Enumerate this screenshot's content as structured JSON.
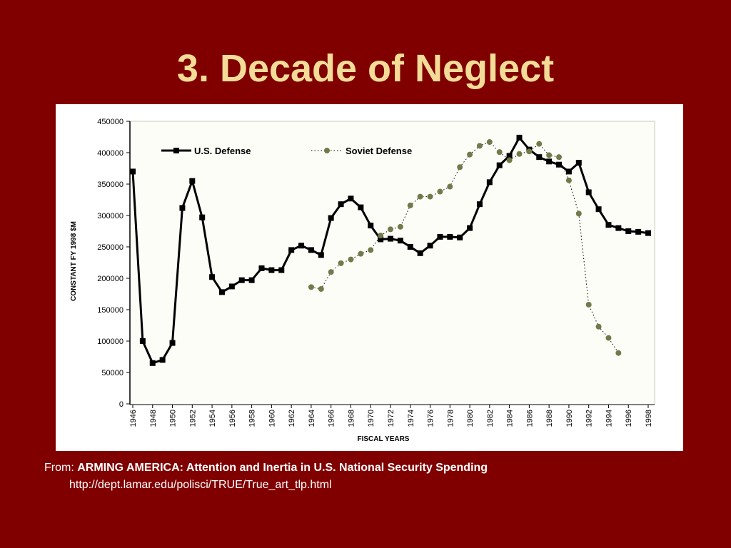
{
  "slide": {
    "title": "3. Decade of Neglect",
    "source_prefix": "From:",
    "source_title": "ARMING AMERICA: Attention and Inertia in U.S. National Security Spending",
    "source_url": "http://dept.lamar.edu/polisci/TRUE/True_art_tlp.html"
  },
  "chart_data": {
    "type": "line",
    "title": "",
    "xlabel": "FISCAL YEARS",
    "ylabel": "CONSTANT FY 1998 $M",
    "ylim": [
      0,
      450000
    ],
    "xlim": [
      1946,
      1998
    ],
    "y_ticks": [
      0,
      50000,
      100000,
      150000,
      200000,
      250000,
      300000,
      350000,
      400000,
      450000
    ],
    "y_tick_labels": [
      "0",
      "50000",
      "100000",
      "150000",
      "200000",
      "250000",
      "300000",
      "350000",
      "400000",
      "450000"
    ],
    "x_tick_labels": [
      "1946",
      "1948",
      "1950",
      "1952",
      "1954",
      "1956",
      "1958",
      "1960",
      "1962",
      "1964",
      "1966",
      "1968",
      "1970",
      "1972",
      "1974",
      "1976",
      "1978",
      "1980",
      "1982",
      "1984",
      "1986",
      "1988",
      "1990",
      "1992",
      "1994",
      "1996",
      "1998"
    ],
    "legend": {
      "placement": "top"
    },
    "series": [
      {
        "name": "U.S. Defense",
        "color": "#000000",
        "style": "solid",
        "marker": "square",
        "points": [
          [
            1946,
            370000
          ],
          [
            1947,
            100000
          ],
          [
            1948,
            65000
          ],
          [
            1949,
            70000
          ],
          [
            1950,
            97000
          ],
          [
            1951,
            312000
          ],
          [
            1952,
            355000
          ],
          [
            1953,
            297000
          ],
          [
            1954,
            202000
          ],
          [
            1955,
            178000
          ],
          [
            1956,
            187000
          ],
          [
            1957,
            197000
          ],
          [
            1958,
            197000
          ],
          [
            1959,
            216000
          ],
          [
            1960,
            213000
          ],
          [
            1961,
            213000
          ],
          [
            1962,
            245000
          ],
          [
            1963,
            252000
          ],
          [
            1964,
            245000
          ],
          [
            1965,
            237000
          ],
          [
            1966,
            296000
          ],
          [
            1967,
            318000
          ],
          [
            1968,
            327000
          ],
          [
            1969,
            313000
          ],
          [
            1970,
            284000
          ],
          [
            1971,
            262000
          ],
          [
            1972,
            263000
          ],
          [
            1973,
            260000
          ],
          [
            1974,
            250000
          ],
          [
            1975,
            240000
          ],
          [
            1976,
            252000
          ],
          [
            1977,
            266000
          ],
          [
            1978,
            266000
          ],
          [
            1979,
            265000
          ],
          [
            1980,
            280000
          ],
          [
            1981,
            318000
          ],
          [
            1982,
            353000
          ],
          [
            1983,
            380000
          ],
          [
            1984,
            395000
          ],
          [
            1985,
            424000
          ],
          [
            1986,
            405000
          ],
          [
            1987,
            393000
          ],
          [
            1988,
            386000
          ],
          [
            1989,
            381000
          ],
          [
            1990,
            370000
          ],
          [
            1991,
            384000
          ],
          [
            1992,
            337000
          ],
          [
            1993,
            310000
          ],
          [
            1994,
            285000
          ],
          [
            1995,
            280000
          ],
          [
            1996,
            275000
          ],
          [
            1997,
            274000
          ],
          [
            1998,
            272000
          ]
        ]
      },
      {
        "name": "Soviet Defense",
        "color": "#707a4a",
        "style": "dotted",
        "marker": "circle",
        "points": [
          [
            1964,
            186000
          ],
          [
            1965,
            183000
          ],
          [
            1966,
            210000
          ],
          [
            1967,
            224000
          ],
          [
            1968,
            230000
          ],
          [
            1969,
            239000
          ],
          [
            1970,
            245000
          ],
          [
            1971,
            268000
          ],
          [
            1972,
            278000
          ],
          [
            1973,
            282000
          ],
          [
            1974,
            316000
          ],
          [
            1975,
            330000
          ],
          [
            1976,
            330000
          ],
          [
            1977,
            338000
          ],
          [
            1978,
            346000
          ],
          [
            1979,
            377000
          ],
          [
            1980,
            397000
          ],
          [
            1981,
            411000
          ],
          [
            1982,
            417000
          ],
          [
            1983,
            401000
          ],
          [
            1984,
            388000
          ],
          [
            1985,
            398000
          ],
          [
            1986,
            402000
          ],
          [
            1987,
            414000
          ],
          [
            1988,
            396000
          ],
          [
            1989,
            393000
          ],
          [
            1990,
            356000
          ],
          [
            1991,
            303000
          ],
          [
            1992,
            158000
          ],
          [
            1993,
            123000
          ],
          [
            1994,
            105000
          ],
          [
            1995,
            81000
          ]
        ]
      }
    ]
  }
}
